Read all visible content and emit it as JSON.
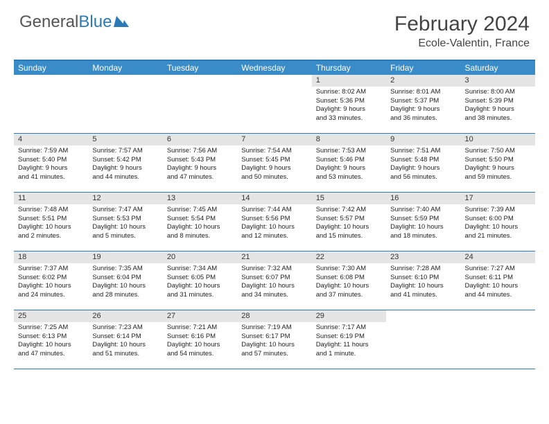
{
  "logo": {
    "text1": "General",
    "text2": "Blue"
  },
  "title": "February 2024",
  "location": "Ecole-Valentin, France",
  "weekdays": [
    "Sunday",
    "Monday",
    "Tuesday",
    "Wednesday",
    "Thursday",
    "Friday",
    "Saturday"
  ],
  "colors": {
    "header_blue": "#3a8cc9",
    "border_blue": "#2a7ab8",
    "daynum_bg": "#e5e5e5",
    "text": "#333333"
  },
  "weeks": [
    [
      null,
      null,
      null,
      null,
      {
        "n": "1",
        "sr": "Sunrise: 8:02 AM",
        "ss": "Sunset: 5:36 PM",
        "d1": "Daylight: 9 hours",
        "d2": "and 33 minutes."
      },
      {
        "n": "2",
        "sr": "Sunrise: 8:01 AM",
        "ss": "Sunset: 5:37 PM",
        "d1": "Daylight: 9 hours",
        "d2": "and 36 minutes."
      },
      {
        "n": "3",
        "sr": "Sunrise: 8:00 AM",
        "ss": "Sunset: 5:39 PM",
        "d1": "Daylight: 9 hours",
        "d2": "and 38 minutes."
      }
    ],
    [
      {
        "n": "4",
        "sr": "Sunrise: 7:59 AM",
        "ss": "Sunset: 5:40 PM",
        "d1": "Daylight: 9 hours",
        "d2": "and 41 minutes."
      },
      {
        "n": "5",
        "sr": "Sunrise: 7:57 AM",
        "ss": "Sunset: 5:42 PM",
        "d1": "Daylight: 9 hours",
        "d2": "and 44 minutes."
      },
      {
        "n": "6",
        "sr": "Sunrise: 7:56 AM",
        "ss": "Sunset: 5:43 PM",
        "d1": "Daylight: 9 hours",
        "d2": "and 47 minutes."
      },
      {
        "n": "7",
        "sr": "Sunrise: 7:54 AM",
        "ss": "Sunset: 5:45 PM",
        "d1": "Daylight: 9 hours",
        "d2": "and 50 minutes."
      },
      {
        "n": "8",
        "sr": "Sunrise: 7:53 AM",
        "ss": "Sunset: 5:46 PM",
        "d1": "Daylight: 9 hours",
        "d2": "and 53 minutes."
      },
      {
        "n": "9",
        "sr": "Sunrise: 7:51 AM",
        "ss": "Sunset: 5:48 PM",
        "d1": "Daylight: 9 hours",
        "d2": "and 56 minutes."
      },
      {
        "n": "10",
        "sr": "Sunrise: 7:50 AM",
        "ss": "Sunset: 5:50 PM",
        "d1": "Daylight: 9 hours",
        "d2": "and 59 minutes."
      }
    ],
    [
      {
        "n": "11",
        "sr": "Sunrise: 7:48 AM",
        "ss": "Sunset: 5:51 PM",
        "d1": "Daylight: 10 hours",
        "d2": "and 2 minutes."
      },
      {
        "n": "12",
        "sr": "Sunrise: 7:47 AM",
        "ss": "Sunset: 5:53 PM",
        "d1": "Daylight: 10 hours",
        "d2": "and 5 minutes."
      },
      {
        "n": "13",
        "sr": "Sunrise: 7:45 AM",
        "ss": "Sunset: 5:54 PM",
        "d1": "Daylight: 10 hours",
        "d2": "and 8 minutes."
      },
      {
        "n": "14",
        "sr": "Sunrise: 7:44 AM",
        "ss": "Sunset: 5:56 PM",
        "d1": "Daylight: 10 hours",
        "d2": "and 12 minutes."
      },
      {
        "n": "15",
        "sr": "Sunrise: 7:42 AM",
        "ss": "Sunset: 5:57 PM",
        "d1": "Daylight: 10 hours",
        "d2": "and 15 minutes."
      },
      {
        "n": "16",
        "sr": "Sunrise: 7:40 AM",
        "ss": "Sunset: 5:59 PM",
        "d1": "Daylight: 10 hours",
        "d2": "and 18 minutes."
      },
      {
        "n": "17",
        "sr": "Sunrise: 7:39 AM",
        "ss": "Sunset: 6:00 PM",
        "d1": "Daylight: 10 hours",
        "d2": "and 21 minutes."
      }
    ],
    [
      {
        "n": "18",
        "sr": "Sunrise: 7:37 AM",
        "ss": "Sunset: 6:02 PM",
        "d1": "Daylight: 10 hours",
        "d2": "and 24 minutes."
      },
      {
        "n": "19",
        "sr": "Sunrise: 7:35 AM",
        "ss": "Sunset: 6:04 PM",
        "d1": "Daylight: 10 hours",
        "d2": "and 28 minutes."
      },
      {
        "n": "20",
        "sr": "Sunrise: 7:34 AM",
        "ss": "Sunset: 6:05 PM",
        "d1": "Daylight: 10 hours",
        "d2": "and 31 minutes."
      },
      {
        "n": "21",
        "sr": "Sunrise: 7:32 AM",
        "ss": "Sunset: 6:07 PM",
        "d1": "Daylight: 10 hours",
        "d2": "and 34 minutes."
      },
      {
        "n": "22",
        "sr": "Sunrise: 7:30 AM",
        "ss": "Sunset: 6:08 PM",
        "d1": "Daylight: 10 hours",
        "d2": "and 37 minutes."
      },
      {
        "n": "23",
        "sr": "Sunrise: 7:28 AM",
        "ss": "Sunset: 6:10 PM",
        "d1": "Daylight: 10 hours",
        "d2": "and 41 minutes."
      },
      {
        "n": "24",
        "sr": "Sunrise: 7:27 AM",
        "ss": "Sunset: 6:11 PM",
        "d1": "Daylight: 10 hours",
        "d2": "and 44 minutes."
      }
    ],
    [
      {
        "n": "25",
        "sr": "Sunrise: 7:25 AM",
        "ss": "Sunset: 6:13 PM",
        "d1": "Daylight: 10 hours",
        "d2": "and 47 minutes."
      },
      {
        "n": "26",
        "sr": "Sunrise: 7:23 AM",
        "ss": "Sunset: 6:14 PM",
        "d1": "Daylight: 10 hours",
        "d2": "and 51 minutes."
      },
      {
        "n": "27",
        "sr": "Sunrise: 7:21 AM",
        "ss": "Sunset: 6:16 PM",
        "d1": "Daylight: 10 hours",
        "d2": "and 54 minutes."
      },
      {
        "n": "28",
        "sr": "Sunrise: 7:19 AM",
        "ss": "Sunset: 6:17 PM",
        "d1": "Daylight: 10 hours",
        "d2": "and 57 minutes."
      },
      {
        "n": "29",
        "sr": "Sunrise: 7:17 AM",
        "ss": "Sunset: 6:19 PM",
        "d1": "Daylight: 11 hours",
        "d2": "and 1 minute."
      },
      null,
      null
    ]
  ]
}
